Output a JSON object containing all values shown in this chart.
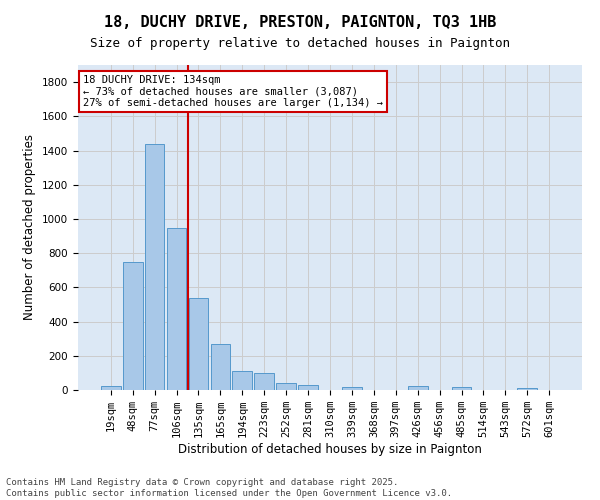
{
  "title_line1": "18, DUCHY DRIVE, PRESTON, PAIGNTON, TQ3 1HB",
  "title_line2": "Size of property relative to detached houses in Paignton",
  "xlabel": "Distribution of detached houses by size in Paignton",
  "ylabel": "Number of detached properties",
  "categories": [
    "19sqm",
    "48sqm",
    "77sqm",
    "106sqm",
    "135sqm",
    "165sqm",
    "194sqm",
    "223sqm",
    "252sqm",
    "281sqm",
    "310sqm",
    "339sqm",
    "368sqm",
    "397sqm",
    "426sqm",
    "456sqm",
    "485sqm",
    "514sqm",
    "543sqm",
    "572sqm",
    "601sqm"
  ],
  "values": [
    22,
    748,
    1437,
    948,
    535,
    268,
    110,
    98,
    40,
    28,
    0,
    17,
    0,
    0,
    22,
    0,
    18,
    0,
    0,
    10,
    0
  ],
  "bar_color": "#a8c8e8",
  "bar_edge_color": "#5599cc",
  "vline_color": "#cc0000",
  "annotation_text": "18 DUCHY DRIVE: 134sqm\n← 73% of detached houses are smaller (3,087)\n27% of semi-detached houses are larger (1,134) →",
  "annotation_box_color": "#cc0000",
  "annotation_bg": "#ffffff",
  "ylim": [
    0,
    1900
  ],
  "yticks": [
    0,
    200,
    400,
    600,
    800,
    1000,
    1200,
    1400,
    1600,
    1800
  ],
  "grid_color": "#cccccc",
  "bg_color": "#dce8f5",
  "footer": "Contains HM Land Registry data © Crown copyright and database right 2025.\nContains public sector information licensed under the Open Government Licence v3.0.",
  "title_fontsize": 11,
  "subtitle_fontsize": 9,
  "axis_label_fontsize": 8.5,
  "tick_fontsize": 7.5,
  "footer_fontsize": 6.5,
  "annotation_fontsize": 7.5
}
